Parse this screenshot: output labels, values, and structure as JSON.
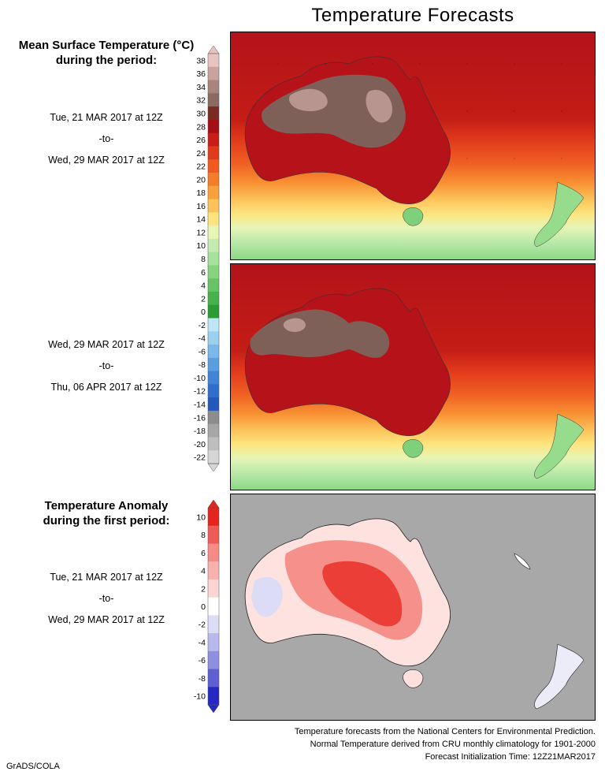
{
  "title": "Temperature Forecasts",
  "mean_heading_line1": "Mean Surface Temperature (°C)",
  "mean_heading_line2": "during the period:",
  "period1": {
    "start": "Tue, 21 MAR 2017 at 12Z",
    "sep": "-to-",
    "end": "Wed, 29 MAR 2017 at 12Z"
  },
  "period2": {
    "start": "Wed, 29 MAR 2017 at 12Z",
    "sep": "-to-",
    "end": "Thu, 06 APR 2017 at 12Z"
  },
  "anom_heading_line1": "Temperature Anomaly",
  "anom_heading_line2": "during the first period:",
  "period3": {
    "start": "Tue, 21 MAR 2017 at 12Z",
    "sep": "-to-",
    "end": "Wed, 29 MAR 2017 at 12Z"
  },
  "temp_scale": {
    "labels": [
      "38",
      "36",
      "34",
      "32",
      "30",
      "28",
      "26",
      "24",
      "22",
      "20",
      "18",
      "16",
      "14",
      "12",
      "10",
      "8",
      "6",
      "4",
      "2",
      "0",
      "-2",
      "-4",
      "-6",
      "-8",
      "-10",
      "-12",
      "-14",
      "-16",
      "-18",
      "-20",
      "-22"
    ],
    "colors": [
      "#e8c4c0",
      "#c9a39c",
      "#a8857c",
      "#8a6a62",
      "#7a2a22",
      "#a50f15",
      "#c81e16",
      "#e03a1c",
      "#ee5a22",
      "#f47d2a",
      "#f9a03a",
      "#fcc35a",
      "#fde47e",
      "#e9f5b4",
      "#c4ecb0",
      "#a6e29c",
      "#86d47e",
      "#66c464",
      "#46b24a",
      "#2a9c34",
      "#bfe6f6",
      "#9cd0f0",
      "#7ab8ea",
      "#5a9ee0",
      "#3f84d6",
      "#2f6ecc",
      "#2458b8",
      "#8c8c8c",
      "#a6a6a6",
      "#bebebe",
      "#d6d6d6"
    ]
  },
  "anom_scale": {
    "labels": [
      "10",
      "8",
      "6",
      "4",
      "2",
      "0",
      "-2",
      "-4",
      "-6",
      "-8",
      "-10"
    ],
    "colors": [
      "#e4241e",
      "#ee5a56",
      "#f58a86",
      "#f9b1ae",
      "#fcd4d2",
      "#ffffff",
      "#dcdcf6",
      "#b9b9ee",
      "#8f8fe2",
      "#5f5fd4",
      "#2727c4"
    ]
  },
  "footer": {
    "line1": "Temperature forecasts from the National Centers for Environmental Prediction.",
    "line2": "Normal Temperature derived from CRU monthly climatology for 1901-2000",
    "line3": "Forecast Initialization Time: 12Z21MAR2017"
  },
  "credit": "GrADS/COLA"
}
